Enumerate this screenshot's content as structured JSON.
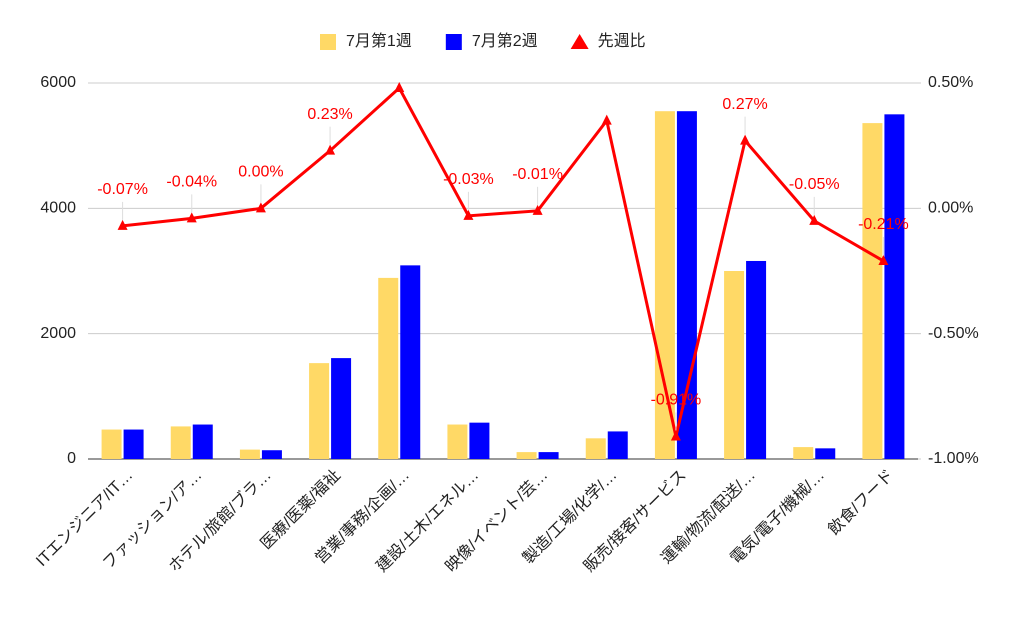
{
  "chart_data": {
    "type": "bar-line",
    "categories": [
      "ITエンジニア/IT…",
      "ファッション/ア…",
      "ホテル/旅館/ブラ…",
      "医療/医薬/福祉",
      "営業/事務/企画/…",
      "建設/土木/エネル…",
      "映像/イベント/芸…",
      "製造/工場/化学/…",
      "販売/接客/サービス",
      "運輸/物流/配送/…",
      "電気/電子/機械/…",
      "飲食/フード"
    ],
    "series": [
      {
        "name": "7月第1週",
        "type": "bar",
        "color": "#ffd966",
        "values": [
          470,
          520,
          150,
          1530,
          2890,
          550,
          110,
          330,
          5550,
          3000,
          190,
          5360
        ]
      },
      {
        "name": "7月第2週",
        "type": "bar",
        "color": "#0000ff",
        "values": [
          470,
          550,
          140,
          1610,
          3090,
          580,
          110,
          440,
          5550,
          3160,
          170,
          5500
        ]
      },
      {
        "name": "先週比",
        "type": "line",
        "axis": "y2",
        "color": "#ff0000",
        "values": [
          -0.07,
          -0.04,
          0.0,
          0.23,
          0.48,
          -0.03,
          -0.01,
          0.35,
          -0.91,
          0.27,
          -0.05,
          -0.21
        ],
        "value_labels": [
          "-0.07%",
          "-0.04%",
          "0.00%",
          "0.23%",
          null,
          "-0.03%",
          "-0.01%",
          null,
          "-0.91%",
          "0.27%",
          "-0.05%",
          "-0.21%"
        ]
      }
    ],
    "ylim": [
      0,
      6000
    ],
    "yticks": [
      0,
      2000,
      4000,
      6000
    ],
    "y2lim": [
      -1,
      0.5
    ],
    "y2ticks": [
      {
        "value": -1,
        "label": "-1.00%"
      },
      {
        "value": -0.5,
        "label": "-0.50%"
      },
      {
        "value": 0,
        "label": "0.00%"
      },
      {
        "value": 0.5,
        "label": "0.50%"
      }
    ],
    "grid": true,
    "legend": "top"
  }
}
